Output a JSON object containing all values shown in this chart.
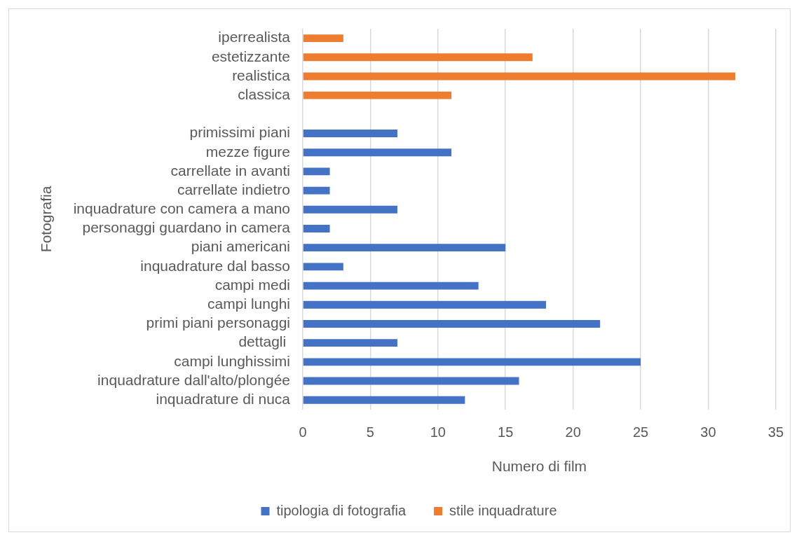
{
  "chart_data": {
    "type": "bar",
    "orientation": "horizontal",
    "xlabel": "Numero di film",
    "ylabel": "Fotografia",
    "categories": [
      "iperrealista",
      "estetizzante",
      "realistica",
      "classica",
      null,
      "primissimi piani",
      "mezze figure",
      "carrellate in avanti",
      "carrellate indietro",
      "inquadrature con camera a mano",
      "personaggi guardano in camera",
      "piani americani",
      "inquadrature dal basso",
      "campi medi",
      "campi lunghi",
      "primi piani personaggi",
      "dettagli ",
      "campi lunghissimi",
      "inquadrature dall'alto/plongée",
      "inquadrature di nuca"
    ],
    "series": [
      {
        "name": "tipologia di fotografia",
        "color": "#4472c4",
        "values": [
          null,
          null,
          null,
          null,
          null,
          7,
          11,
          2,
          2,
          7,
          2,
          15,
          3,
          13,
          18,
          22,
          7,
          25,
          16,
          12
        ]
      },
      {
        "name": "stile inquadrature",
        "color": "#ed7d31",
        "values": [
          3,
          17,
          32,
          11,
          null,
          null,
          null,
          null,
          null,
          null,
          null,
          null,
          null,
          null,
          null,
          null,
          null,
          null,
          null,
          null
        ]
      }
    ],
    "xlim": [
      0,
      35
    ],
    "xticks": [
      0,
      5,
      10,
      15,
      20,
      25,
      30,
      35
    ],
    "grid": "x",
    "legend": "bottom"
  }
}
